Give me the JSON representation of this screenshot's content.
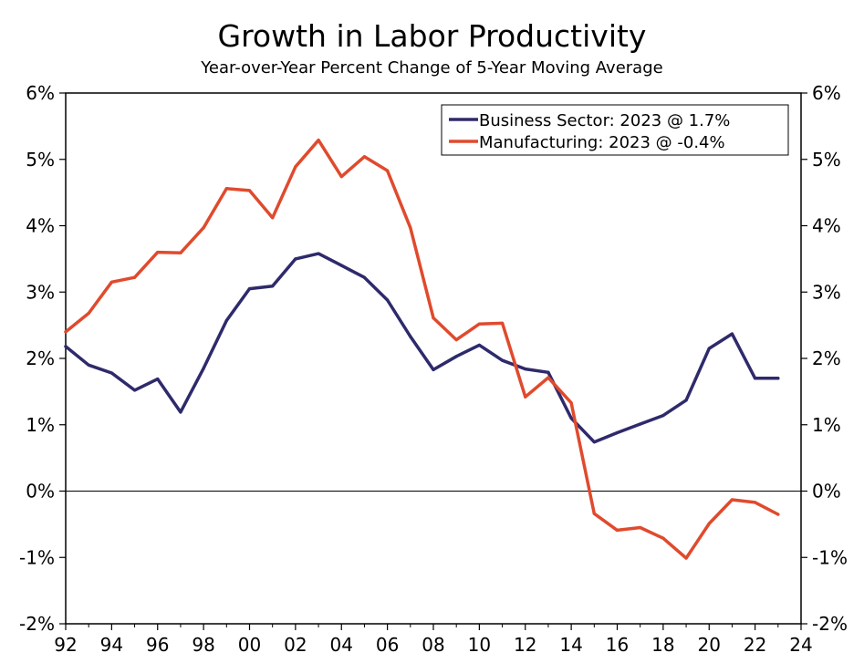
{
  "chart_data": {
    "type": "line",
    "title": "Growth in Labor Productivity",
    "subtitle": "Year-over-Year Percent Change of 5-Year Moving Average",
    "x_tick_labels": [
      "92",
      "94",
      "96",
      "98",
      "00",
      "02",
      "04",
      "06",
      "08",
      "10",
      "12",
      "14",
      "16",
      "18",
      "20",
      "22",
      "24"
    ],
    "x_range": [
      1992,
      2024
    ],
    "y_range": [
      -2,
      6
    ],
    "y_tick_values": [
      -2,
      -1,
      0,
      1,
      2,
      3,
      4,
      5,
      6
    ],
    "y_tick_labels": [
      "-2%",
      "-1%",
      "0%",
      "1%",
      "2%",
      "3%",
      "4%",
      "5%",
      "6%"
    ],
    "grid": false,
    "legend_position": "top-right",
    "zero_line": true,
    "series": [
      {
        "name": "Business Sector: 2023 @ 1.7%",
        "color": "#2e2a6b",
        "x": [
          1992,
          1993,
          1994,
          1995,
          1996,
          1997,
          1998,
          1999,
          2000,
          2001,
          2002,
          2003,
          2004,
          2005,
          2006,
          2007,
          2008,
          2009,
          2010,
          2011,
          2012,
          2013,
          2014,
          2015,
          2016,
          2017,
          2018,
          2019,
          2020,
          2021,
          2022,
          2023
        ],
        "values": [
          2.18,
          1.9,
          1.78,
          1.52,
          1.69,
          1.19,
          1.85,
          2.57,
          3.05,
          3.09,
          3.5,
          3.58,
          3.4,
          3.22,
          2.88,
          2.33,
          1.83,
          2.03,
          2.2,
          1.97,
          1.84,
          1.79,
          1.1,
          0.74,
          0.88,
          1.01,
          1.14,
          1.37,
          2.15,
          2.37,
          1.7,
          1.7
        ]
      },
      {
        "name": "Manufacturing: 2023 @ -0.4%",
        "color": "#e04a2d",
        "x": [
          1992,
          1993,
          1994,
          1995,
          1996,
          1997,
          1998,
          1999,
          2000,
          2001,
          2002,
          2003,
          2004,
          2005,
          2006,
          2007,
          2008,
          2009,
          2010,
          2011,
          2012,
          2013,
          2014,
          2015,
          2016,
          2017,
          2018,
          2019,
          2020,
          2021,
          2022,
          2023
        ],
        "values": [
          2.4,
          2.68,
          3.15,
          3.22,
          3.6,
          3.59,
          3.97,
          4.56,
          4.53,
          4.12,
          4.89,
          5.29,
          4.74,
          5.04,
          4.83,
          3.97,
          2.61,
          2.28,
          2.52,
          2.53,
          1.42,
          1.71,
          1.33,
          -0.34,
          -0.59,
          -0.55,
          -0.71,
          -1.01,
          -0.49,
          -0.13,
          -0.17,
          -0.35
        ]
      }
    ]
  }
}
